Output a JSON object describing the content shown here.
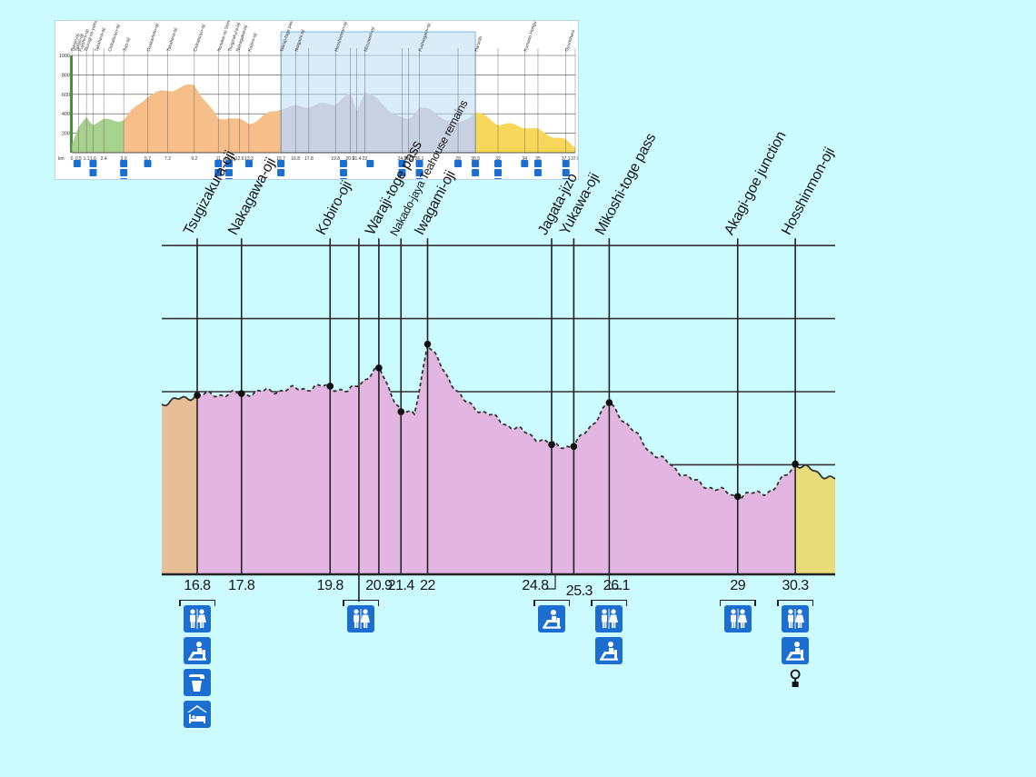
{
  "colors": {
    "background": "#ccfbff",
    "section_pink": "#e2b6e0",
    "section_tan": "#e7be96",
    "section_yellow": "#e8dc7a",
    "overview_green": "#a9d18e",
    "overview_orange": "#f6bf8a",
    "overview_pink": "#d7c4cc",
    "overview_yellow": "#f6d75a",
    "icon_blue": "#1c6fd0",
    "line": "#222222",
    "highlight": "#b9dcf2"
  },
  "overview": {
    "y_ticks": [
      "1000",
      "800",
      "600",
      "400",
      "200"
    ],
    "axis_unit": "km",
    "km_ticks": [
      "0",
      "0.5",
      "1.1",
      "1.6",
      "2.4",
      "3.9",
      "5.7",
      "7.2",
      "9.2",
      "11",
      "11.8",
      "12.6",
      "13.3",
      "15.7",
      "16.8",
      "17.8",
      "19.8",
      "20.9",
      "21.4",
      "22",
      "24.8",
      "25.3",
      "26.1",
      "29",
      "30.3",
      "32",
      "34",
      "35",
      "37.1",
      "37.8"
    ],
    "place_labels": [
      "Takijiri-oji",
      "Takijiri-oji",
      "Fujishiro-oji",
      "Tsurugi no yama kofun",
      "Takahara-oji",
      "Chikatsuyu-oji",
      "Jujo-oji",
      "Osakamoto-oji",
      "Takahara-oji",
      "Chikatsuyu-oji",
      "Nonaka no Shimizu",
      "Tsugizakura-oji",
      "Nakagawa-oji",
      "Kobiro-oji",
      "Waraji-toge pass",
      "Iwagami-oji",
      "Hosshinmon-oji",
      "Mizunomi-oji",
      "Fushiogami-oji",
      "Haraido",
      "Kumano Hongu Taisha",
      "Oyunohara"
    ],
    "chart_data": {
      "type": "area",
      "x": [
        0,
        0.5,
        1.1,
        1.6,
        2.4,
        3.9,
        5.7,
        7.2,
        9.2,
        11,
        11.8,
        12.6,
        13.3,
        15.7,
        16.8,
        17.8,
        19.8,
        20.9,
        21.4,
        22,
        24.8,
        25.3,
        26.1,
        29,
        30.3,
        32,
        34,
        35,
        37.1,
        37.8
      ],
      "y": [
        80,
        240,
        370,
        300,
        330,
        340,
        590,
        640,
        700,
        340,
        370,
        330,
        300,
        460,
        470,
        480,
        510,
        600,
        430,
        640,
        340,
        340,
        480,
        290,
        420,
        300,
        270,
        230,
        120,
        60
      ],
      "ylim": [
        0,
        1000
      ],
      "highlight_range": [
        15.7,
        30.3
      ]
    }
  },
  "main": {
    "chart_data": {
      "type": "area",
      "x": [
        16.8,
        17.8,
        19.8,
        20.2,
        20.9,
        21.4,
        21.7,
        22,
        22.8,
        23.8,
        24.8,
        25.3,
        26.1,
        27.0,
        28.0,
        29,
        29.8,
        30.3,
        31.2
      ],
      "y": [
        490,
        495,
        515,
        498,
        565,
        445,
        438,
        630,
        475,
        410,
        355,
        350,
        470,
        340,
        255,
        213,
        230,
        302,
        260
      ],
      "ylim": [
        0,
        1000
      ],
      "x_tick_labels": [
        "16.8",
        "17.8",
        "19.8",
        "20.9",
        "21.4",
        "22",
        "24.8",
        "25.3",
        "26.1",
        "29",
        "30.3"
      ],
      "x_tick_values": [
        16.8,
        17.8,
        19.8,
        20.9,
        21.4,
        22,
        24.8,
        25.3,
        26.1,
        29,
        30.3
      ],
      "gridlines_y": [
        300,
        500,
        700,
        900
      ],
      "sections": [
        {
          "name": "",
          "from": 16.0,
          "to": 16.8,
          "color": "#e7be96"
        },
        {
          "name": "",
          "from": 16.8,
          "to": 30.3,
          "color": "#e2b6e0"
        },
        {
          "name": "",
          "from": 30.3,
          "to": 31.2,
          "color": "#e8dc7a"
        }
      ]
    },
    "points": [
      {
        "label": "Tsugizakura-oji",
        "km": 16.8,
        "elev": 490
      },
      {
        "label": "Nakagawa-oji",
        "km": 17.8,
        "elev": 495
      },
      {
        "label": "Kobiro-oji",
        "km": 19.8,
        "elev": 515
      },
      {
        "label": "Waraji-toge pass",
        "km": 20.9,
        "elev": 565
      },
      {
        "label": "Nakado-jaya Teahouse remains",
        "km": 21.4,
        "elev": 445
      },
      {
        "label": "Iwagami-oji",
        "km": 22,
        "elev": 630
      },
      {
        "label": "Jagata-jizo",
        "km": 24.8,
        "elev": 355
      },
      {
        "label": "Yukawa-oji",
        "km": 25.3,
        "elev": 350
      },
      {
        "label": "Mikoshi-toge pass",
        "km": 26.1,
        "elev": 470
      },
      {
        "label": "Akagi-goe junction",
        "km": 29,
        "elev": 213
      },
      {
        "label": "Hosshinmon-oji",
        "km": 30.3,
        "elev": 302
      }
    ],
    "facility_groups": [
      {
        "km": 16.8,
        "icons": [
          "toilet-icon",
          "rest-area-icon",
          "water-icon",
          "lodging-icon"
        ]
      },
      {
        "km": 20.5,
        "icons": [
          "toilet-icon"
        ]
      },
      {
        "km": 24.8,
        "icons": [
          "rest-area-icon"
        ]
      },
      {
        "km": 26.1,
        "icons": [
          "toilet-icon",
          "rest-area-icon"
        ]
      },
      {
        "km": 29,
        "icons": [
          "toilet-icon"
        ]
      },
      {
        "km": 30.3,
        "icons": [
          "toilet-icon",
          "rest-area-icon",
          "bus-stop-icon"
        ]
      }
    ]
  }
}
